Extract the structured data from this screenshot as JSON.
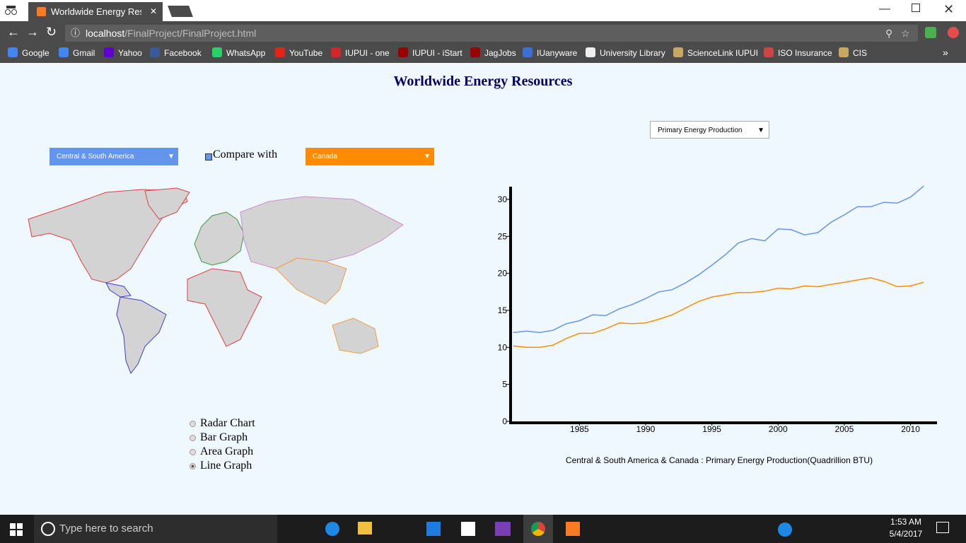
{
  "browser": {
    "tab_title": "Worldwide Energy Resou",
    "url_host": "localhost",
    "url_path": "/FinalProject/FinalProject.html",
    "bookmarks": [
      "Google",
      "Gmail",
      "Yahoo",
      "Facebook",
      "WhatsApp",
      "YouTube",
      "IUPUI - one",
      "IUPUI - iStart",
      "JagJobs",
      "IUanyware",
      "University Library",
      "ScienceLink IUPUI",
      "ISO Insurance",
      "CIS"
    ]
  },
  "page": {
    "title": "Worldwide Energy Resources",
    "region_select": "Central & South America",
    "compare_label": "Compare with",
    "compare_select": "Canada",
    "metric_select": "Primary Energy Production",
    "chart_types": [
      "Radar Chart",
      "Bar Graph",
      "Area Graph",
      "Line Graph"
    ]
  },
  "chart_data": {
    "type": "line",
    "caption": "Central & South America & Canada : Primary Energy Production(Quadrillion BTU)",
    "x": [
      1980,
      1981,
      1982,
      1983,
      1984,
      1985,
      1986,
      1987,
      1988,
      1989,
      1990,
      1991,
      1992,
      1993,
      1994,
      1995,
      1996,
      1997,
      1998,
      1999,
      2000,
      2001,
      2002,
      2003,
      2004,
      2005,
      2006,
      2007,
      2008,
      2009,
      2010,
      2011
    ],
    "series": [
      {
        "name": "Central & South America",
        "color": "#6495ed",
        "values": [
          12.0,
          12.2,
          12.0,
          12.3,
          13.2,
          13.6,
          14.4,
          14.3,
          15.2,
          15.8,
          16.6,
          17.5,
          17.8,
          18.7,
          19.8,
          21.1,
          22.5,
          24.1,
          24.7,
          24.4,
          26.0,
          25.9,
          25.2,
          25.5,
          26.9,
          27.9,
          29.0,
          29.0,
          29.6,
          29.5,
          30.3,
          31.8
        ]
      },
      {
        "name": "Canada",
        "color": "#ff8c00",
        "values": [
          10.2,
          10.0,
          10.0,
          10.3,
          11.2,
          11.9,
          11.9,
          12.5,
          13.3,
          13.2,
          13.3,
          13.8,
          14.4,
          15.3,
          16.2,
          16.8,
          17.1,
          17.4,
          17.4,
          17.6,
          18.0,
          17.9,
          18.3,
          18.2,
          18.5,
          18.8,
          19.1,
          19.4,
          18.9,
          18.2,
          18.3,
          18.8
        ]
      }
    ],
    "xlim": [
      1979.8,
      2012
    ],
    "ylim": [
      0,
      32
    ],
    "xticks": [
      1985,
      1990,
      1995,
      2000,
      2005,
      2010
    ],
    "yticks": [
      0,
      5,
      10,
      15,
      20,
      25,
      30
    ]
  },
  "taskbar": {
    "search_placeholder": "Type here to search",
    "time": "1:53 AM",
    "date": "5/4/2017"
  }
}
